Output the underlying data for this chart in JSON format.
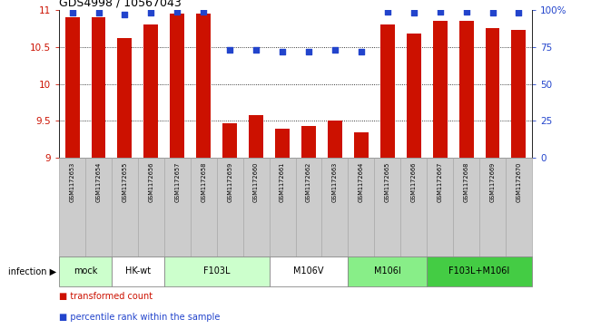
{
  "title": "GDS4998 / 10567043",
  "samples": [
    "GSM1172653",
    "GSM1172654",
    "GSM1172655",
    "GSM1172656",
    "GSM1172657",
    "GSM1172658",
    "GSM1172659",
    "GSM1172660",
    "GSM1172661",
    "GSM1172662",
    "GSM1172663",
    "GSM1172664",
    "GSM1172665",
    "GSM1172666",
    "GSM1172667",
    "GSM1172668",
    "GSM1172669",
    "GSM1172670"
  ],
  "bar_values": [
    10.9,
    10.9,
    10.62,
    10.8,
    10.95,
    10.95,
    9.47,
    9.58,
    9.4,
    9.43,
    9.5,
    9.35,
    10.8,
    10.68,
    10.85,
    10.85,
    10.75,
    10.73
  ],
  "percentile_values": [
    98,
    98,
    97,
    98,
    99,
    99,
    73,
    73,
    72,
    72,
    73,
    72,
    99,
    98,
    99,
    99,
    98,
    98
  ],
  "groups": [
    {
      "label": "mock",
      "start": 0,
      "end": 1,
      "color": "#ccffcc"
    },
    {
      "label": "HK-wt",
      "start": 2,
      "end": 3,
      "color": "#ffffff"
    },
    {
      "label": "F103L",
      "start": 4,
      "end": 7,
      "color": "#ccffcc"
    },
    {
      "label": "M106V",
      "start": 8,
      "end": 10,
      "color": "#ffffff"
    },
    {
      "label": "M106I",
      "start": 11,
      "end": 13,
      "color": "#88ee88"
    },
    {
      "label": "F103L+M106I",
      "start": 14,
      "end": 17,
      "color": "#44cc44"
    }
  ],
  "ylim_left": [
    9,
    11
  ],
  "ylim_right": [
    0,
    100
  ],
  "yticks_left": [
    9,
    9.5,
    10,
    10.5,
    11
  ],
  "ytick_labels_left": [
    "9",
    "9.5",
    "10",
    "10.5",
    "11"
  ],
  "yticks_right": [
    0,
    25,
    50,
    75,
    100
  ],
  "ytick_labels_right": [
    "0",
    "25",
    "50",
    "75",
    "100%"
  ],
  "grid_lines": [
    9.5,
    10.0,
    10.5
  ],
  "bar_color": "#cc1100",
  "dot_color": "#2244cc",
  "bar_width": 0.55,
  "label_box_color": "#cccccc",
  "label_box_edge": "#aaaaaa",
  "legend_items": [
    {
      "label": "transformed count",
      "color": "#cc1100"
    },
    {
      "label": "percentile rank within the sample",
      "color": "#2244cc"
    }
  ]
}
